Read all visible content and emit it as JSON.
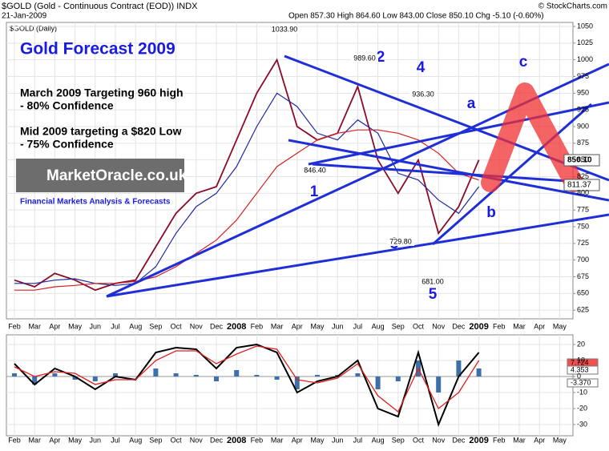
{
  "header": {
    "symbol": "$GOLD (Gold - Continuous Contract (EOD)) INDX",
    "date": "21-Jan-2009",
    "quote": "Open 857.30 High 864.60 Low 843.00 Close 850.10 Chg -5.10 (-0.60%)",
    "credit": "© StockCharts.com"
  },
  "annotations": {
    "panel_title": "$GOLD (Daily)",
    "forecast_title": "Gold Forecast 2009",
    "notes": [
      "March 2009 Targeting 960 high",
      "- 80% Confidence",
      "Mid 2009 targeting a $820 Low",
      "- 75% Confidence"
    ],
    "waves": [
      "1",
      "2",
      "3",
      "4",
      "5",
      "a",
      "b",
      "c"
    ],
    "price_labels": [
      "1033.90",
      "989.60",
      "936.30",
      "846.40",
      "729.80",
      "681.00"
    ],
    "tags": [
      "850.10",
      "811.37"
    ],
    "logo": "MarketOracle.co.uk",
    "logo_tagline": "Financial Markets Analysis & Forecasts",
    "macd_tags": [
      "7.724",
      "4.353",
      "-3.370"
    ]
  },
  "chart_data": [
    {
      "type": "line",
      "categories": [
        "Feb",
        "Mar",
        "Apr",
        "May",
        "Jun",
        "Jul",
        "Aug",
        "Sep",
        "Oct",
        "Nov",
        "Dec",
        "2008",
        "Feb",
        "Mar",
        "Apr",
        "May",
        "Jun",
        "Jul",
        "Aug",
        "Sep",
        "Oct",
        "Nov",
        "Dec",
        "2009",
        "Feb",
        "Mar",
        "Apr",
        "May"
      ],
      "series": [
        {
          "color": "#8b0a2a",
          "values": [
            670,
            660,
            680,
            670,
            655,
            665,
            670,
            720,
            770,
            800,
            810,
            880,
            950,
            1000,
            900,
            880,
            890,
            960,
            850,
            800,
            850,
            740,
            780,
            850.1,
            null,
            null,
            null,
            null
          ]
        },
        {
          "color": "#1e2a9e",
          "values": [
            665,
            665,
            670,
            672,
            665,
            662,
            665,
            690,
            740,
            780,
            800,
            840,
            900,
            950,
            930,
            890,
            880,
            910,
            890,
            830,
            820,
            790,
            770,
            810,
            null,
            null,
            null,
            null
          ]
        },
        {
          "color": "#d42020",
          "values": [
            655,
            655,
            660,
            662,
            665,
            665,
            668,
            675,
            690,
            710,
            730,
            760,
            800,
            840,
            860,
            880,
            890,
            895,
            895,
            890,
            880,
            860,
            830,
            820,
            null,
            null,
            null,
            null
          ]
        }
      ],
      "ylim": [
        612,
        1056
      ],
      "yticks": [
        625,
        650,
        675,
        700,
        725,
        750,
        775,
        800,
        825,
        850,
        875,
        900,
        925,
        950,
        975,
        1000,
        1025,
        1050
      ],
      "grid": true
    },
    {
      "type": "macd",
      "categories": [
        "Feb",
        "Mar",
        "Apr",
        "May",
        "Jun",
        "Jul",
        "Aug",
        "Sep",
        "Oct",
        "Nov",
        "Dec",
        "2008",
        "Feb",
        "Mar",
        "Apr",
        "May",
        "Jun",
        "Jul",
        "Aug",
        "Sep",
        "Oct",
        "Nov",
        "Dec",
        "2009",
        "Feb",
        "Mar",
        "Apr",
        "May"
      ],
      "series": [
        {
          "color": "#000000",
          "values": [
            8,
            -5,
            5,
            0,
            -8,
            0,
            -2,
            15,
            18,
            17,
            5,
            18,
            20,
            15,
            -10,
            -3,
            0,
            10,
            -20,
            -25,
            15,
            -30,
            0,
            15,
            null,
            null,
            null,
            null
          ]
        },
        {
          "color": "#e02020",
          "values": [
            6,
            0,
            3,
            2,
            -5,
            -2,
            -2,
            10,
            16,
            16,
            8,
            14,
            19,
            17,
            -2,
            -4,
            -1,
            8,
            -12,
            -22,
            5,
            -20,
            -10,
            10,
            null,
            null,
            null,
            null
          ]
        },
        {
          "color": "#3d6fa8",
          "values": [
            2,
            -5,
            2,
            -2,
            -3,
            2,
            0,
            5,
            2,
            1,
            -3,
            4,
            1,
            -2,
            -8,
            1,
            1,
            2,
            -8,
            -3,
            10,
            -10,
            10,
            5,
            null,
            null,
            null,
            null
          ]
        }
      ],
      "ylim": [
        -37,
        26
      ],
      "yticks": [
        -30,
        -20,
        -10,
        0,
        10,
        20
      ],
      "grid": true
    }
  ]
}
